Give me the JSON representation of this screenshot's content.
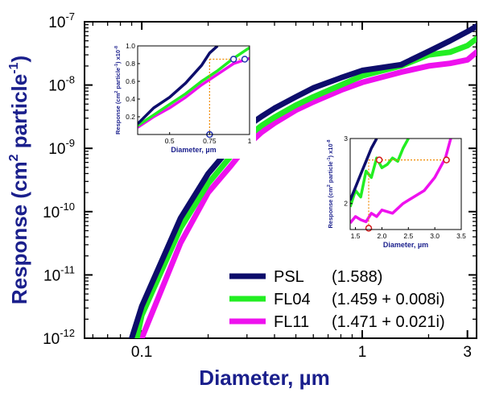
{
  "chart_data": {
    "type": "line",
    "xlabel": "Diameter, µm",
    "ylabel_main": "Response (cm",
    "ylabel_sup1": "2",
    "ylabel_mid": " particle",
    "ylabel_sup2": "-1",
    "ylabel_end": ")",
    "xscale": "log",
    "yscale": "log",
    "xlim": [
      0.055,
      3.3
    ],
    "ylim": [
      1e-12,
      1e-07
    ],
    "xticks": [
      {
        "v": 0.1,
        "label": "0.1"
      },
      {
        "v": 1,
        "label": "1"
      },
      {
        "v": 3,
        "label": "3"
      }
    ],
    "yticks": [
      {
        "e": -12,
        "base": "10",
        "exp": "-12"
      },
      {
        "e": -11,
        "base": "10",
        "exp": "-11"
      },
      {
        "e": -10,
        "base": "10",
        "exp": "-10"
      },
      {
        "e": -9,
        "base": "10",
        "exp": "-9"
      },
      {
        "e": -8,
        "base": "10",
        "exp": "-8"
      },
      {
        "e": -7,
        "base": "10",
        "exp": "-7"
      }
    ],
    "legend_position": "bottom-right",
    "series": [
      {
        "name": "PSL",
        "ri": "(1.588)",
        "color": "#0d0d6b",
        "x": [
          0.09,
          0.1,
          0.15,
          0.2,
          0.25,
          0.3,
          0.35,
          0.4,
          0.5,
          0.6,
          0.8,
          1.0,
          1.5,
          2.0,
          2.5,
          3.0,
          3.3
        ],
        "y": [
          1e-12,
          3.2e-12,
          7.9e-11,
          3.98e-10,
          1e-09,
          2.2e-09,
          3.2e-09,
          4.3e-09,
          6.5e-09,
          9e-09,
          1.3e-08,
          1.7e-08,
          2.1e-08,
          3.4e-08,
          5e-08,
          7e-08,
          8.5e-08
        ]
      },
      {
        "name": "FL04",
        "ri": "(1.459 + 0.008i)",
        "color": "#22ee22",
        "x": [
          0.095,
          0.1,
          0.15,
          0.2,
          0.25,
          0.3,
          0.35,
          0.4,
          0.5,
          0.6,
          0.8,
          1.0,
          1.5,
          2.0,
          2.5,
          3.0,
          3.3
        ],
        "y": [
          1e-12,
          2.3e-12,
          5.5e-11,
          2.8e-10,
          7.1e-10,
          1.5e-09,
          2.3e-09,
          3.1e-09,
          4.8e-09,
          6.5e-09,
          1e-08,
          1.4e-08,
          2e-08,
          3e-08,
          3.3e-08,
          4.2e-08,
          5.4e-08
        ]
      },
      {
        "name": "FL11",
        "ri": "(1.471 + 0.021i)",
        "color": "#ee11ee",
        "x": [
          0.1,
          0.15,
          0.2,
          0.25,
          0.3,
          0.35,
          0.4,
          0.5,
          0.6,
          0.8,
          1.0,
          1.5,
          2.0,
          2.5,
          3.0,
          3.3
        ],
        "y": [
          1e-12,
          3.2e-11,
          2e-10,
          5e-10,
          1.1e-09,
          1.8e-09,
          2.5e-09,
          4e-09,
          5.4e-09,
          8.3e-09,
          1.1e-08,
          1.6e-08,
          2e-08,
          2.2e-08,
          2.5e-08,
          3.3e-08
        ]
      }
    ],
    "insets": [
      {
        "id": "inset1",
        "xlabel": "Diameter, µm",
        "ylabel_main": "Response (cm",
        "ylabel_sup1": "2",
        "ylabel_mid": " particle",
        "ylabel_sup2": "-1",
        "ylabel_end": ") x10",
        "ylabel_sup3": "-8",
        "xlim": [
          0.3,
          1.0
        ],
        "ylim": [
          0.0,
          1.0
        ],
        "xticks": [
          {
            "v": 0.5,
            "label": "0.5"
          },
          {
            "v": 0.75,
            "label": "0.75"
          },
          {
            "v": 1.0,
            "label": "1"
          }
        ],
        "yticks": [
          {
            "v": 0.2,
            "label": "0.2"
          },
          {
            "v": 0.4,
            "label": "0.4"
          },
          {
            "v": 0.6,
            "label": "0.6"
          },
          {
            "v": 0.8,
            "label": "0.8"
          },
          {
            "v": 1.0,
            "label": "1.0"
          }
        ],
        "series": [
          {
            "name": "PSL",
            "x": [
              0.3,
              0.4,
              0.5,
              0.6,
              0.7,
              0.75,
              0.8
            ],
            "y": [
              0.12,
              0.3,
              0.42,
              0.58,
              0.78,
              0.92,
              1.0
            ]
          },
          {
            "name": "FL04",
            "x": [
              0.3,
              0.4,
              0.5,
              0.6,
              0.7,
              0.8,
              0.9,
              1.0
            ],
            "y": [
              0.1,
              0.22,
              0.34,
              0.46,
              0.6,
              0.72,
              0.86,
              0.98
            ]
          },
          {
            "name": "FL11",
            "x": [
              0.3,
              0.4,
              0.5,
              0.6,
              0.7,
              0.8,
              0.9,
              1.0
            ],
            "y": [
              0.08,
              0.2,
              0.3,
              0.42,
              0.56,
              0.68,
              0.8,
              0.86
            ]
          }
        ],
        "markers": [
          {
            "x": 0.75,
            "y": 0.0
          },
          {
            "x": 0.9,
            "y": 0.85
          },
          {
            "x": 0.97,
            "y": 0.85
          }
        ],
        "guides": [
          {
            "x1": 0.75,
            "y1": 0.0,
            "x2": 0.75,
            "y2": 0.85
          },
          {
            "x1": 0.75,
            "y1": 0.85,
            "x2": 0.97,
            "y2": 0.85
          }
        ],
        "marker_color": "#1f2fb0"
      },
      {
        "id": "inset2",
        "xlabel": "Diameter, µm",
        "ylabel_main": "Response (cm",
        "ylabel_sup1": "2",
        "ylabel_mid": " particle",
        "ylabel_sup2": "-1",
        "ylabel_end": ") x10",
        "ylabel_sup3": "-8",
        "xlim": [
          1.4,
          3.5
        ],
        "ylim": [
          1.6,
          3.0
        ],
        "xticks": [
          {
            "v": 1.5,
            "label": "1.5"
          },
          {
            "v": 2.0,
            "label": "2.0"
          },
          {
            "v": 2.5,
            "label": "2.5"
          },
          {
            "v": 3.0,
            "label": "3.0"
          },
          {
            "v": 3.5,
            "label": "3.5"
          }
        ],
        "yticks": [
          {
            "v": 2.0,
            "label": "2"
          },
          {
            "v": 3.0,
            "label": "3"
          }
        ],
        "series": [
          {
            "name": "PSL",
            "x": [
              1.4,
              1.5,
              1.6,
              1.7,
              1.8,
              1.9
            ],
            "y": [
              2.05,
              2.25,
              2.45,
              2.65,
              2.85,
              3.0
            ]
          },
          {
            "name": "FL04",
            "x": [
              1.4,
              1.5,
              1.6,
              1.7,
              1.8,
              1.9,
              2.0,
              2.1,
              2.2,
              2.3,
              2.4,
              2.5
            ],
            "y": [
              1.95,
              2.2,
              2.1,
              2.5,
              2.4,
              2.7,
              2.55,
              2.6,
              2.7,
              2.65,
              2.85,
              3.0
            ]
          },
          {
            "name": "FL11",
            "x": [
              1.4,
              1.5,
              1.6,
              1.7,
              1.8,
              1.9,
              2.0,
              2.2,
              2.4,
              2.6,
              2.8,
              3.0,
              3.2,
              3.3
            ],
            "y": [
              1.7,
              1.8,
              1.75,
              1.72,
              1.85,
              1.8,
              1.9,
              1.85,
              2.0,
              2.1,
              2.2,
              2.4,
              2.7,
              3.0
            ]
          }
        ],
        "markers": [
          {
            "x": 1.75,
            "y": 1.62
          },
          {
            "x": 1.95,
            "y": 2.67
          },
          {
            "x": 3.22,
            "y": 2.67
          }
        ],
        "guides": [
          {
            "x1": 1.75,
            "y1": 1.62,
            "x2": 1.75,
            "y2": 2.67
          },
          {
            "x1": 1.75,
            "y1": 2.67,
            "x2": 3.22,
            "y2": 2.67
          }
        ],
        "marker_color": "#d11a1a"
      }
    ]
  }
}
